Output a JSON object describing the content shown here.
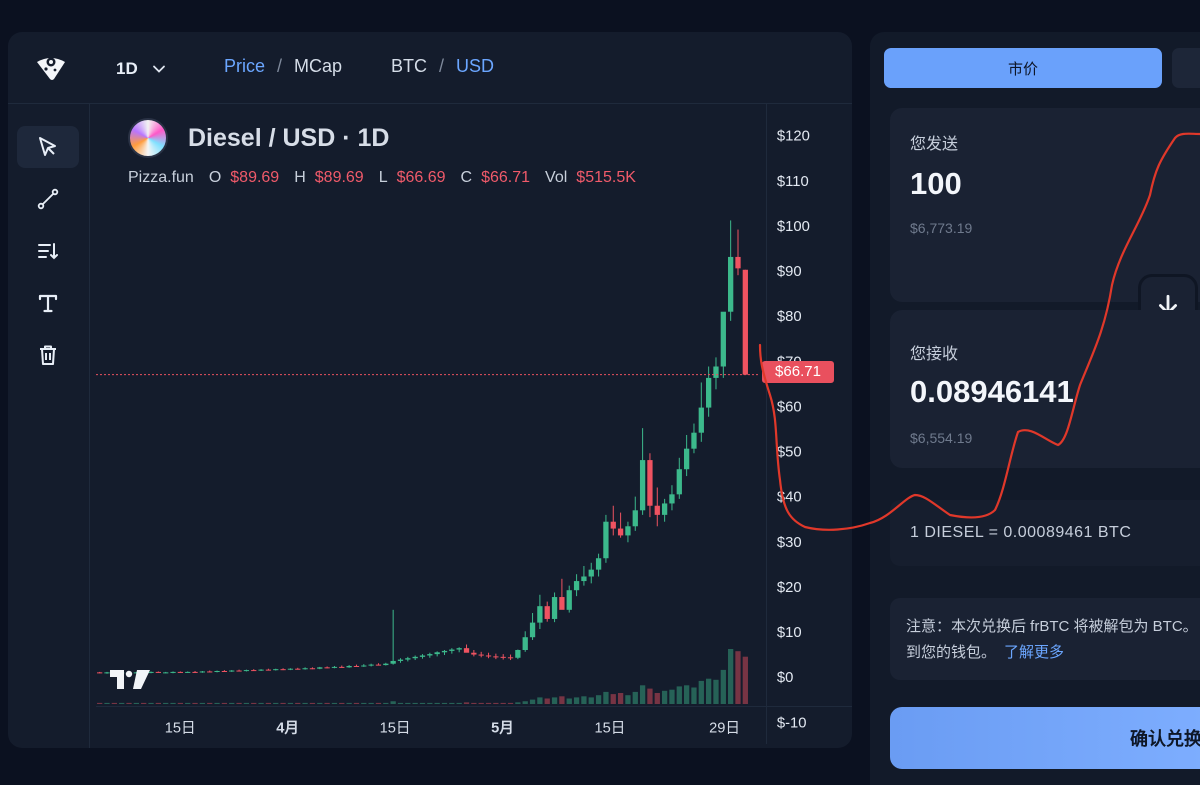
{
  "chart_header": {
    "timeframe": "1D",
    "price_label": "Price",
    "sep1": "/",
    "mcap_label": "MCap",
    "base_label": "BTC",
    "sep2": "/",
    "quote_label": "USD"
  },
  "tools": [
    "cursor-icon",
    "trendline-icon",
    "sort-icon",
    "text-icon",
    "trash-icon"
  ],
  "legend": {
    "pair": "Diesel / USD · 1D",
    "source": "Pizza.fun",
    "o_label": "O",
    "o_value": "$89.69",
    "h_label": "H",
    "h_value": "$89.69",
    "l_label": "L",
    "l_value": "$66.69",
    "c_label": "C",
    "c_value": "$66.71",
    "vol_label": "Vol",
    "vol_value": "$515.5K"
  },
  "last_price_tag": "$66.71",
  "colors": {
    "up": "#3cb98c",
    "down": "#ef5361",
    "accent": "#6aa1fb",
    "marker": "#e0382a"
  },
  "chart_data": {
    "type": "candlestick",
    "title": "Diesel / USD · 1D",
    "x_ticks": [
      "15日",
      "4月",
      "15日",
      "5月",
      "15日",
      "29日"
    ],
    "y_ticks": [
      "$120",
      "$110",
      "$100",
      "$90",
      "$80",
      "$70",
      "$60",
      "$50",
      "$40",
      "$30",
      "$20",
      "$10",
      "$0",
      "$-10"
    ],
    "ylim": [
      -12,
      126
    ],
    "last_price": 66.71,
    "candles_ohlc": [
      [
        1.5,
        1.6,
        1.3,
        1.4
      ],
      [
        1.4,
        1.6,
        1.2,
        1.5
      ],
      [
        1.5,
        1.6,
        1.3,
        1.3
      ],
      [
        1.3,
        1.6,
        1.2,
        1.5
      ],
      [
        1.5,
        1.7,
        1.3,
        1.4
      ],
      [
        1.4,
        1.6,
        1.3,
        1.5
      ],
      [
        1.5,
        1.6,
        1.3,
        1.4
      ],
      [
        1.4,
        1.7,
        1.3,
        1.6
      ],
      [
        1.6,
        1.7,
        1.4,
        1.4
      ],
      [
        1.4,
        1.6,
        1.3,
        1.5
      ],
      [
        1.5,
        1.7,
        1.3,
        1.6
      ],
      [
        1.6,
        1.7,
        1.4,
        1.5
      ],
      [
        1.5,
        1.7,
        1.4,
        1.6
      ],
      [
        1.6,
        1.8,
        1.4,
        1.5
      ],
      [
        1.5,
        1.8,
        1.4,
        1.7
      ],
      [
        1.7,
        1.9,
        1.5,
        1.6
      ],
      [
        1.6,
        1.9,
        1.5,
        1.8
      ],
      [
        1.8,
        2.0,
        1.6,
        1.7
      ],
      [
        1.7,
        2.0,
        1.6,
        1.9
      ],
      [
        1.9,
        2.1,
        1.7,
        1.8
      ],
      [
        1.8,
        2.1,
        1.7,
        2.0
      ],
      [
        2.0,
        2.2,
        1.8,
        1.9
      ],
      [
        1.9,
        2.2,
        1.8,
        2.1
      ],
      [
        2.1,
        2.3,
        1.9,
        2.0
      ],
      [
        2.0,
        2.3,
        1.9,
        2.2
      ],
      [
        2.2,
        2.4,
        2.0,
        2.1
      ],
      [
        2.1,
        2.4,
        2.0,
        2.3
      ],
      [
        2.3,
        2.5,
        2.1,
        2.2
      ],
      [
        2.2,
        2.6,
        2.1,
        2.4
      ],
      [
        2.4,
        2.6,
        2.2,
        2.3
      ],
      [
        2.3,
        2.7,
        2.2,
        2.6
      ],
      [
        2.6,
        2.8,
        2.4,
        2.5
      ],
      [
        2.5,
        2.9,
        2.4,
        2.7
      ],
      [
        2.7,
        3.0,
        2.5,
        2.6
      ],
      [
        2.6,
        3.1,
        2.5,
        2.9
      ],
      [
        2.9,
        3.2,
        2.7,
        2.8
      ],
      [
        2.8,
        3.3,
        2.7,
        3.0
      ],
      [
        3.0,
        3.4,
        2.8,
        3.2
      ],
      [
        3.2,
        3.5,
        3.0,
        3.1
      ],
      [
        3.1,
        3.6,
        3.0,
        3.4
      ],
      [
        3.4,
        15.2,
        3.2,
        4.0
      ],
      [
        4.0,
        4.6,
        3.6,
        4.3
      ],
      [
        4.3,
        4.9,
        3.9,
        4.6
      ],
      [
        4.6,
        5.2,
        4.2,
        4.9
      ],
      [
        4.9,
        5.5,
        4.5,
        5.2
      ],
      [
        5.2,
        5.8,
        4.7,
        5.5
      ],
      [
        5.5,
        6.1,
        5.0,
        5.9
      ],
      [
        5.9,
        6.4,
        5.3,
        6.2
      ],
      [
        6.2,
        6.8,
        5.6,
        6.5
      ],
      [
        6.5,
        7.0,
        5.9,
        6.8
      ],
      [
        6.8,
        7.6,
        6.0,
        5.8
      ],
      [
        5.8,
        6.4,
        5.0,
        5.4
      ],
      [
        5.4,
        6.0,
        4.8,
        5.2
      ],
      [
        5.2,
        5.8,
        4.6,
        5.0
      ],
      [
        5.0,
        5.6,
        4.4,
        4.9
      ],
      [
        4.9,
        5.5,
        4.3,
        4.8
      ],
      [
        4.8,
        5.4,
        4.2,
        4.7
      ],
      [
        4.7,
        6.5,
        4.4,
        6.4
      ],
      [
        6.4,
        10.5,
        6.0,
        9.2
      ],
      [
        9.2,
        14.5,
        8.6,
        12.4
      ],
      [
        12.4,
        18.5,
        11.0,
        16.0
      ],
      [
        16.0,
        17.0,
        12.6,
        13.2
      ],
      [
        13.2,
        19.0,
        12.5,
        18.0
      ],
      [
        18.0,
        22.0,
        16.5,
        15.2
      ],
      [
        15.2,
        20.5,
        14.6,
        19.5
      ],
      [
        19.5,
        23.0,
        18.2,
        21.5
      ],
      [
        21.5,
        24.8,
        20.5,
        22.5
      ],
      [
        22.5,
        25.5,
        21.0,
        24.0
      ],
      [
        24.0,
        27.5,
        22.5,
        26.5
      ],
      [
        26.5,
        36.0,
        25.5,
        34.5
      ],
      [
        34.5,
        38.0,
        31.5,
        33.0
      ],
      [
        33.0,
        36.5,
        31.0,
        31.5
      ],
      [
        31.5,
        34.5,
        30.0,
        33.5
      ],
      [
        33.5,
        40.0,
        32.5,
        37.0
      ],
      [
        37.0,
        55.0,
        36.0,
        48.0
      ],
      [
        48.0,
        49.5,
        35.5,
        38.0
      ],
      [
        38.0,
        42.0,
        33.5,
        36.0
      ],
      [
        36.0,
        39.5,
        34.5,
        38.5
      ],
      [
        38.5,
        42.5,
        37.0,
        40.5
      ],
      [
        40.5,
        48.5,
        39.5,
        46.0
      ],
      [
        46.0,
        53.5,
        44.5,
        50.5
      ],
      [
        50.5,
        56.0,
        49.5,
        54.0
      ],
      [
        54.0,
        65.0,
        52.0,
        59.5
      ],
      [
        59.5,
        68.5,
        57.5,
        66.0
      ],
      [
        66.0,
        70.5,
        63.5,
        68.5
      ],
      [
        68.5,
        76.0,
        66.0,
        80.5
      ],
      [
        80.5,
        100.5,
        78.5,
        92.5
      ],
      [
        92.5,
        98.5,
        88.5,
        90.0
      ],
      [
        89.69,
        89.69,
        66.69,
        66.71
      ]
    ],
    "volume_relative": [
      0.02,
      0.02,
      0.02,
      0.02,
      0.02,
      0.02,
      0.02,
      0.02,
      0.02,
      0.02,
      0.02,
      0.02,
      0.02,
      0.02,
      0.02,
      0.02,
      0.02,
      0.02,
      0.02,
      0.02,
      0.02,
      0.02,
      0.02,
      0.02,
      0.02,
      0.02,
      0.02,
      0.02,
      0.02,
      0.02,
      0.02,
      0.02,
      0.02,
      0.02,
      0.02,
      0.02,
      0.02,
      0.02,
      0.02,
      0.02,
      0.05,
      0.02,
      0.02,
      0.02,
      0.02,
      0.02,
      0.02,
      0.02,
      0.02,
      0.02,
      0.03,
      0.02,
      0.02,
      0.02,
      0.02,
      0.02,
      0.02,
      0.03,
      0.05,
      0.08,
      0.12,
      0.1,
      0.12,
      0.14,
      0.1,
      0.12,
      0.14,
      0.12,
      0.16,
      0.22,
      0.18,
      0.2,
      0.16,
      0.22,
      0.34,
      0.28,
      0.2,
      0.24,
      0.26,
      0.32,
      0.34,
      0.3,
      0.42,
      0.46,
      0.44,
      0.62,
      1.0,
      0.96,
      0.86
    ]
  },
  "panel": {
    "tab_market": "市价",
    "send_label": "您发送",
    "send_amount": "100",
    "send_usd": "$6,773.19",
    "receive_label": "您接收",
    "receive_amount": "0.08946141",
    "receive_usd": "$6,554.19",
    "rate": "1 DIESEL = 0.00089461 BTC",
    "note_line1": "注意：本次兑换后 frBTC 将被解包为 BTC。",
    "note_line2": "到您的钱包。",
    "learn_more": "了解更多",
    "confirm_label": "确认兑换"
  }
}
